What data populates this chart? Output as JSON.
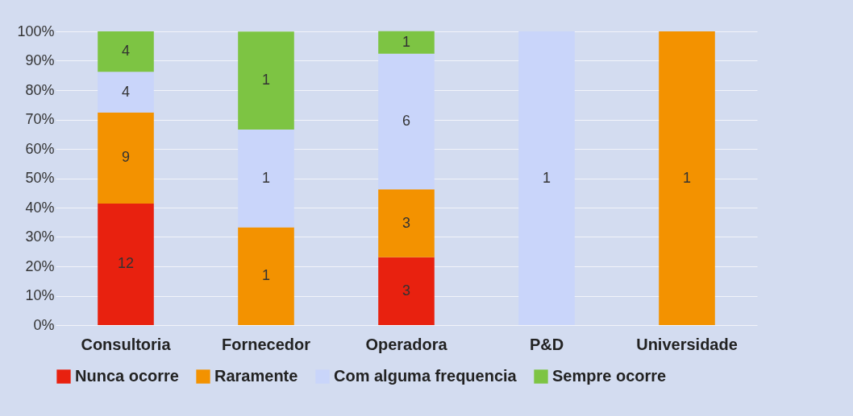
{
  "chart_data": {
    "type": "bar",
    "stacked": true,
    "categories": [
      "Consultoria",
      "Fornecedor",
      "Operadora",
      "P&D",
      "Universidade"
    ],
    "series": [
      {
        "name": "Nunca ocorre",
        "color": "#e8210f",
        "values": [
          41.4,
          null,
          23.1,
          null,
          null
        ]
      },
      {
        "name": "Raramente",
        "color": "#f39200",
        "values": [
          31.0,
          33.3,
          23.1,
          null,
          100
        ]
      },
      {
        "name": "Com alguma frequencia",
        "color": "#c9d5fa",
        "values": [
          13.8,
          33.3,
          46.2,
          100,
          null
        ]
      },
      {
        "name": "Sempre ocorre",
        "color": "#7dc443",
        "values": [
          13.8,
          33.3,
          7.7,
          null,
          null
        ]
      }
    ],
    "annotations": [
      "12",
      "9",
      "4",
      "4",
      "1",
      "1",
      "1",
      "3",
      "3",
      "6",
      "1",
      "1",
      "1"
    ],
    "ylim": [
      0,
      100
    ],
    "yticks": [
      {
        "value": 0,
        "label": "0%"
      },
      {
        "value": 10,
        "label": "10%"
      },
      {
        "value": 20,
        "label": "20%"
      },
      {
        "value": 30,
        "label": "30%"
      },
      {
        "value": 40,
        "label": "40%"
      },
      {
        "value": 50,
        "label": "50%"
      },
      {
        "value": 60,
        "label": "60%"
      },
      {
        "value": 70,
        "label": "70%"
      },
      {
        "value": 80,
        "label": "80%"
      },
      {
        "value": 90,
        "label": "90%"
      },
      {
        "value": 100,
        "label": "100%"
      }
    ],
    "grid": "y",
    "legend": "bottom"
  }
}
